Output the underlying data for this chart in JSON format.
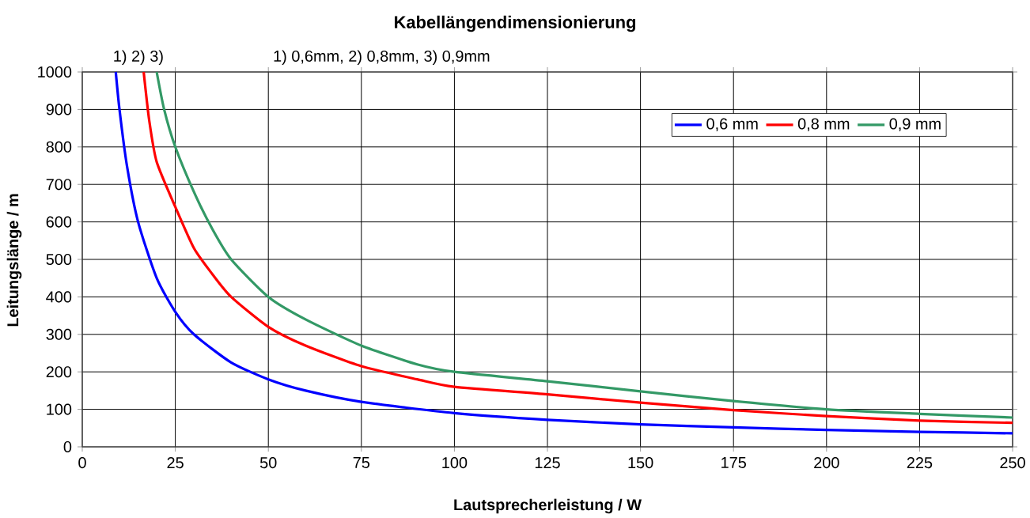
{
  "chart_data": {
    "type": "line",
    "title": "Kabellängendimensionierung",
    "xlabel": "Lautsprecherleistung / W",
    "ylabel": "Leitungslänge / m",
    "annotations": [
      "1)  2) 3)",
      "1) 0,6mm, 2) 0,8mm, 3) 0,9mm"
    ],
    "xlim": [
      0,
      250
    ],
    "xticks": [
      0,
      25,
      50,
      75,
      100,
      125,
      150,
      175,
      200,
      225,
      250
    ],
    "ylim": [
      0,
      1000
    ],
    "yticks": [
      0,
      100,
      200,
      300,
      400,
      500,
      600,
      700,
      800,
      900,
      1000
    ],
    "grid": true,
    "legend": "top right",
    "marker": "none",
    "line_style": "solid",
    "series": [
      {
        "name": "0,6 mm",
        "color": "#0000ff",
        "x": [
          9,
          10,
          12,
          15,
          20,
          25,
          30,
          40,
          50,
          60,
          75,
          100,
          125,
          150,
          175,
          200,
          225,
          250
        ],
        "values": [
          1000,
          900,
          750,
          600,
          450,
          360,
          300,
          225,
          180,
          150,
          120,
          90,
          72,
          60,
          52,
          45,
          40,
          36
        ]
      },
      {
        "name": "0,8 mm",
        "color": "#ff0000",
        "x": [
          16.5,
          18,
          20,
          25,
          30,
          35,
          40,
          50,
          60,
          75,
          90,
          100,
          125,
          150,
          175,
          200,
          225,
          250
        ],
        "values": [
          1000,
          870,
          760,
          640,
          530,
          460,
          400,
          320,
          270,
          215,
          180,
          160,
          140,
          118,
          98,
          82,
          70,
          64
        ]
      },
      {
        "name": "0,9 mm",
        "color": "#339966",
        "x": [
          20,
          22,
          25,
          30,
          35,
          40,
          50,
          60,
          75,
          90,
          100,
          125,
          150,
          175,
          200,
          225,
          250
        ],
        "values": [
          1000,
          900,
          800,
          680,
          580,
          500,
          400,
          340,
          270,
          220,
          200,
          175,
          148,
          122,
          100,
          88,
          78
        ]
      }
    ]
  }
}
